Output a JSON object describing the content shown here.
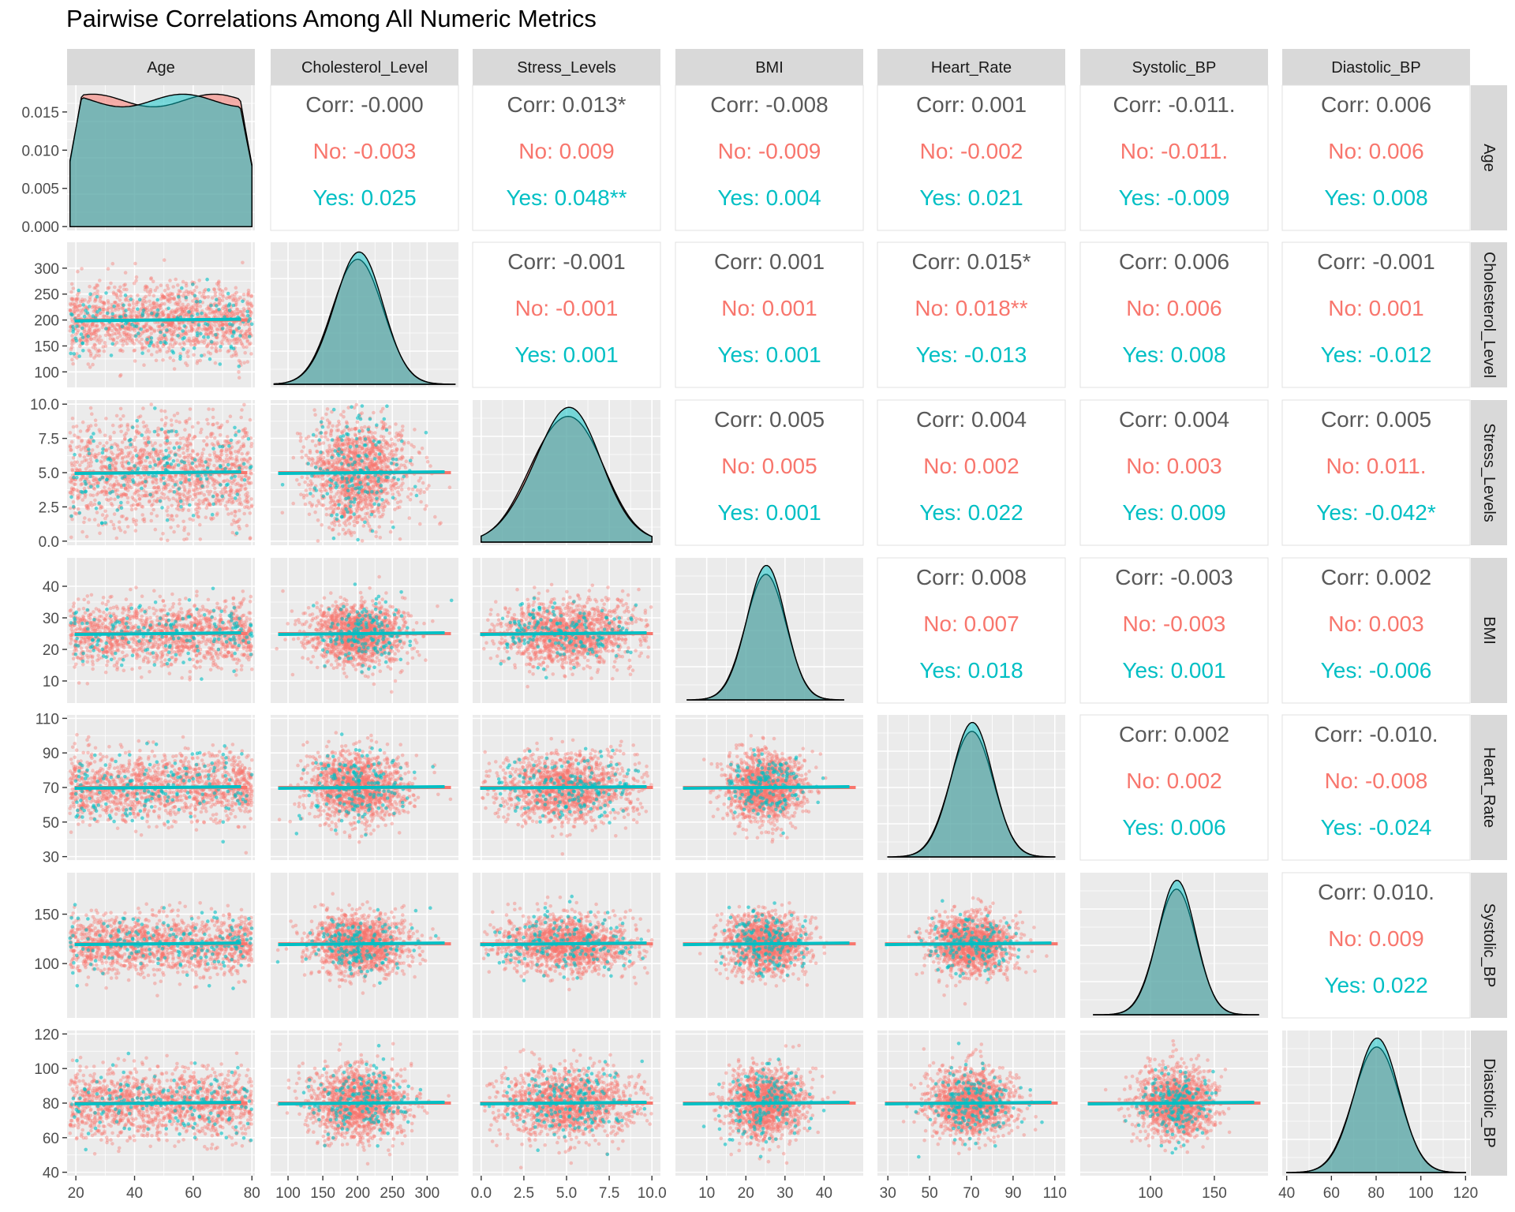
{
  "title": "Pairwise Correlations Among All Numeric Metrics",
  "colors": {
    "no": "#F8766D",
    "yes": "#00BFC4",
    "corr": "#595959",
    "panel_bg": "#EBEBEB",
    "strip_bg": "#D9D9D9",
    "grid": "#FFFFFF"
  },
  "chart_data": {
    "type": "scatter",
    "subtype": "pairs-matrix (ggpairs)",
    "grouping": [
      "No",
      "Yes"
    ],
    "variables": [
      "Age",
      "Cholesterol_Level",
      "Stress_Levels",
      "BMI",
      "Heart_Rate",
      "Systolic_BP",
      "Diastolic_BP"
    ],
    "x_ranges": [
      [
        17,
        81
      ],
      [
        75,
        345
      ],
      [
        -0.5,
        10.5
      ],
      [
        2,
        50
      ],
      [
        25,
        115
      ],
      [
        45,
        192
      ],
      [
        38,
        122
      ]
    ],
    "x_ticks": [
      [
        20,
        40,
        60,
        80
      ],
      [
        100,
        150,
        200,
        250,
        300
      ],
      [
        0.0,
        2.5,
        5.0,
        7.5,
        10.0
      ],
      [
        10,
        20,
        30,
        40
      ],
      [
        30,
        50,
        70,
        90,
        110
      ],
      [
        100,
        150
      ],
      [
        40,
        60,
        80,
        100,
        120
      ]
    ],
    "x_tick_labels": [
      [
        "20",
        "40",
        "60",
        "80"
      ],
      [
        "100",
        "150",
        "200",
        "250",
        "300"
      ],
      [
        "0.0",
        "2.5",
        "5.0",
        "7.5",
        "10.0"
      ],
      [
        "10",
        "20",
        "30",
        "40"
      ],
      [
        "30",
        "50",
        "70",
        "90",
        "110"
      ],
      [
        "100",
        "150"
      ],
      [
        "40",
        "60",
        "80",
        "100",
        "120"
      ]
    ],
    "y_axes": [
      {
        "range": [
          -0.0005,
          0.0185
        ],
        "ticks": [
          0.0,
          0.005,
          0.01,
          0.015
        ],
        "labels": [
          "0.000",
          "0.005",
          "0.010",
          "0.015"
        ]
      },
      {
        "range": [
          70,
          350
        ],
        "ticks": [
          100,
          150,
          200,
          250,
          300
        ],
        "labels": [
          "100",
          "150",
          "200",
          "250",
          "300"
        ]
      },
      {
        "range": [
          -0.3,
          10.3
        ],
        "ticks": [
          0.0,
          2.5,
          5.0,
          7.5,
          10.0
        ],
        "labels": [
          "0.0",
          "2.5",
          "5.0",
          "7.5",
          "10.0"
        ]
      },
      {
        "range": [
          3,
          49
        ],
        "ticks": [
          10,
          20,
          30,
          40
        ],
        "labels": [
          "10",
          "20",
          "30",
          "40"
        ]
      },
      {
        "range": [
          28,
          112
        ],
        "ticks": [
          30,
          50,
          70,
          90,
          110
        ],
        "labels": [
          "30",
          "50",
          "70",
          "90",
          "110"
        ]
      },
      {
        "range": [
          45,
          192
        ],
        "ticks": [
          100,
          150
        ],
        "labels": [
          "100",
          "150"
        ]
      },
      {
        "range": [
          38,
          122
        ],
        "ticks": [
          40,
          60,
          80,
          100,
          120
        ],
        "labels": [
          "40",
          "60",
          "80",
          "100",
          "120"
        ]
      }
    ],
    "distributions": [
      {
        "type": "uniform",
        "min": 18,
        "max": 80
      },
      {
        "type": "normal",
        "mean": 200,
        "sd": 35,
        "min": 80,
        "max": 340
      },
      {
        "type": "normal",
        "mean": 5,
        "sd": 2,
        "min": 0,
        "max": 10
      },
      {
        "type": "normal",
        "mean": 25,
        "sd": 5,
        "min": 5,
        "max": 45
      },
      {
        "type": "normal",
        "mean": 70,
        "sd": 10,
        "min": 30,
        "max": 110
      },
      {
        "type": "normal",
        "mean": 120,
        "sd": 15,
        "min": 55,
        "max": 185
      },
      {
        "type": "normal",
        "mean": 80,
        "sd": 10,
        "min": 40,
        "max": 120
      }
    ],
    "correlations": [
      {
        "row": "Age",
        "col": "Cholesterol_Level",
        "corr": "Corr: -0.000",
        "no": "No: -0.003",
        "yes": "Yes: 0.025"
      },
      {
        "row": "Age",
        "col": "Stress_Levels",
        "corr": "Corr: 0.013*",
        "no": "No: 0.009",
        "yes": "Yes: 0.048**"
      },
      {
        "row": "Age",
        "col": "BMI",
        "corr": "Corr: -0.008",
        "no": "No: -0.009",
        "yes": "Yes: 0.004"
      },
      {
        "row": "Age",
        "col": "Heart_Rate",
        "corr": "Corr: 0.001",
        "no": "No: -0.002",
        "yes": "Yes: 0.021"
      },
      {
        "row": "Age",
        "col": "Systolic_BP",
        "corr": "Corr: -0.011.",
        "no": "No: -0.011.",
        "yes": "Yes: -0.009"
      },
      {
        "row": "Age",
        "col": "Diastolic_BP",
        "corr": "Corr: 0.006",
        "no": "No: 0.006",
        "yes": "Yes: 0.008"
      },
      {
        "row": "Cholesterol_Level",
        "col": "Stress_Levels",
        "corr": "Corr: -0.001",
        "no": "No: -0.001",
        "yes": "Yes: 0.001"
      },
      {
        "row": "Cholesterol_Level",
        "col": "BMI",
        "corr": "Corr: 0.001",
        "no": "No: 0.001",
        "yes": "Yes: 0.001"
      },
      {
        "row": "Cholesterol_Level",
        "col": "Heart_Rate",
        "corr": "Corr: 0.015*",
        "no": "No: 0.018**",
        "yes": "Yes: -0.013"
      },
      {
        "row": "Cholesterol_Level",
        "col": "Systolic_BP",
        "corr": "Corr: 0.006",
        "no": "No: 0.006",
        "yes": "Yes: 0.008"
      },
      {
        "row": "Cholesterol_Level",
        "col": "Diastolic_BP",
        "corr": "Corr: -0.001",
        "no": "No: 0.001",
        "yes": "Yes: -0.012"
      },
      {
        "row": "Stress_Levels",
        "col": "BMI",
        "corr": "Corr: 0.005",
        "no": "No: 0.005",
        "yes": "Yes: 0.001"
      },
      {
        "row": "Stress_Levels",
        "col": "Heart_Rate",
        "corr": "Corr: 0.004",
        "no": "No: 0.002",
        "yes": "Yes: 0.022"
      },
      {
        "row": "Stress_Levels",
        "col": "Systolic_BP",
        "corr": "Corr: 0.004",
        "no": "No: 0.003",
        "yes": "Yes: 0.009"
      },
      {
        "row": "Stress_Levels",
        "col": "Diastolic_BP",
        "corr": "Corr: 0.005",
        "no": "No: 0.011.",
        "yes": "Yes: -0.042*"
      },
      {
        "row": "BMI",
        "col": "Heart_Rate",
        "corr": "Corr: 0.008",
        "no": "No: 0.007",
        "yes": "Yes: 0.018"
      },
      {
        "row": "BMI",
        "col": "Systolic_BP",
        "corr": "Corr: -0.003",
        "no": "No: -0.003",
        "yes": "Yes: 0.001"
      },
      {
        "row": "BMI",
        "col": "Diastolic_BP",
        "corr": "Corr: 0.002",
        "no": "No: 0.003",
        "yes": "Yes: -0.006"
      },
      {
        "row": "Heart_Rate",
        "col": "Systolic_BP",
        "corr": "Corr: 0.002",
        "no": "No: 0.002",
        "yes": "Yes: 0.006"
      },
      {
        "row": "Heart_Rate",
        "col": "Diastolic_BP",
        "corr": "Corr: -0.010.",
        "no": "No: -0.008",
        "yes": "Yes: -0.024"
      },
      {
        "row": "Systolic_BP",
        "col": "Diastolic_BP",
        "corr": "Corr: 0.010.",
        "no": "No: 0.009",
        "yes": "Yes: 0.022"
      }
    ]
  }
}
